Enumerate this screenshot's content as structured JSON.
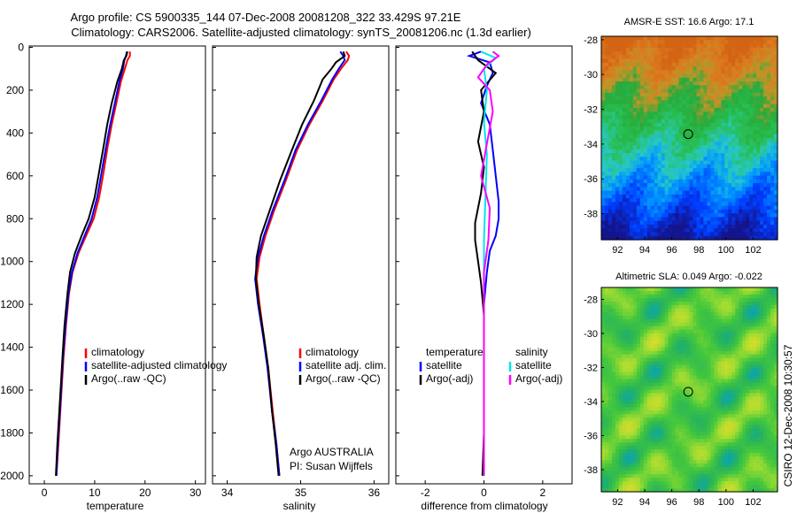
{
  "header": {
    "title_line1": "Argo profile: CS 5900335_144 07-Dec-2008 20081208_322 33.429S 97.21E",
    "title_line2": "Climatology: CARS2006. Satellite-adjusted climatology: synTS_20081206.nc (1.3d earlier)"
  },
  "side_label": "CSIRO 12-Dec-2008 10:30:57",
  "colors": {
    "climatology": "#ff0000",
    "satellite": "#0000ff",
    "argo": "#000000",
    "sal_satellite": "#00e5ee",
    "sal_argo": "#ff00ff"
  },
  "chart_data": [
    {
      "type": "line",
      "id": "temperature",
      "xlabel": "temperature",
      "xlim": [
        -3,
        32
      ],
      "xticks": [
        0,
        10,
        20,
        30
      ],
      "ylim": [
        2050,
        0
      ],
      "yticks": [
        0,
        200,
        400,
        600,
        800,
        1000,
        1200,
        1400,
        1600,
        1800,
        2000
      ],
      "legend": [
        "climatology",
        "satellite-adjusted climatology",
        "Argo(..raw -QC)"
      ],
      "series": [
        {
          "name": "climatology",
          "color": "climatology",
          "points": [
            [
              17.0,
              20
            ],
            [
              17.0,
              40
            ],
            [
              16.5,
              60
            ],
            [
              16.0,
              100
            ],
            [
              15.2,
              160
            ],
            [
              14.3,
              260
            ],
            [
              13.4,
              360
            ],
            [
              12.6,
              460
            ],
            [
              11.8,
              580
            ],
            [
              10.9,
              700
            ],
            [
              9.8,
              800
            ],
            [
              8.3,
              880
            ],
            [
              6.8,
              960
            ],
            [
              5.6,
              1050
            ],
            [
              4.9,
              1150
            ],
            [
              4.3,
              1300
            ],
            [
              3.8,
              1450
            ],
            [
              3.3,
              1650
            ],
            [
              2.8,
              1850
            ],
            [
              2.4,
              2000
            ]
          ]
        },
        {
          "name": "satellite-adjusted climatology",
          "color": "satellite",
          "points": [
            [
              16.4,
              20
            ],
            [
              16.2,
              40
            ],
            [
              15.9,
              60
            ],
            [
              15.6,
              100
            ],
            [
              14.9,
              160
            ],
            [
              14.0,
              260
            ],
            [
              13.1,
              360
            ],
            [
              12.3,
              460
            ],
            [
              11.4,
              580
            ],
            [
              10.5,
              700
            ],
            [
              9.4,
              800
            ],
            [
              8.0,
              880
            ],
            [
              6.6,
              960
            ],
            [
              5.5,
              1050
            ],
            [
              4.8,
              1150
            ],
            [
              4.2,
              1300
            ],
            [
              3.7,
              1450
            ],
            [
              3.2,
              1650
            ],
            [
              2.7,
              1850
            ],
            [
              2.4,
              2000
            ]
          ]
        },
        {
          "name": "Argo(..raw -QC)",
          "color": "argo",
          "points": [
            [
              16.5,
              20
            ],
            [
              16.3,
              40
            ],
            [
              15.8,
              60
            ],
            [
              15.4,
              100
            ],
            [
              14.5,
              160
            ],
            [
              13.4,
              260
            ],
            [
              12.5,
              360
            ],
            [
              11.8,
              460
            ],
            [
              10.9,
              580
            ],
            [
              10.0,
              700
            ],
            [
              8.8,
              800
            ],
            [
              7.4,
              880
            ],
            [
              6.1,
              960
            ],
            [
              5.1,
              1050
            ],
            [
              4.6,
              1150
            ],
            [
              4.0,
              1300
            ],
            [
              3.6,
              1450
            ],
            [
              3.1,
              1650
            ],
            [
              2.6,
              1850
            ],
            [
              2.3,
              2000
            ]
          ]
        }
      ]
    },
    {
      "type": "line",
      "id": "salinity",
      "xlabel": "salinity",
      "xlim": [
        33.8,
        36.2
      ],
      "xticks": [
        34,
        35,
        36
      ],
      "ylim": [
        2050,
        0
      ],
      "annotation_line1": "Argo AUSTRALIA",
      "annotation_line2": "PI: Susan Wijffels",
      "legend": [
        "climatology",
        "satellite adj. clim.",
        "Argo(..raw -QC)"
      ],
      "series": [
        {
          "name": "climatology",
          "color": "climatology",
          "points": [
            [
              35.62,
              20
            ],
            [
              35.66,
              40
            ],
            [
              35.64,
              60
            ],
            [
              35.55,
              100
            ],
            [
              35.45,
              150
            ],
            [
              35.3,
              250
            ],
            [
              35.12,
              360
            ],
            [
              34.95,
              480
            ],
            [
              34.8,
              620
            ],
            [
              34.64,
              760
            ],
            [
              34.52,
              880
            ],
            [
              34.44,
              980
            ],
            [
              34.4,
              1080
            ],
            [
              34.44,
              1200
            ],
            [
              34.5,
              1350
            ],
            [
              34.56,
              1500
            ],
            [
              34.62,
              1700
            ],
            [
              34.67,
              1850
            ],
            [
              34.71,
              2000
            ]
          ]
        },
        {
          "name": "satellite adj. clim.",
          "color": "satellite",
          "points": [
            [
              35.54,
              20
            ],
            [
              35.58,
              40
            ],
            [
              35.6,
              60
            ],
            [
              35.52,
              100
            ],
            [
              35.43,
              150
            ],
            [
              35.28,
              250
            ],
            [
              35.1,
              360
            ],
            [
              34.93,
              480
            ],
            [
              34.78,
              620
            ],
            [
              34.62,
              760
            ],
            [
              34.5,
              880
            ],
            [
              34.42,
              980
            ],
            [
              34.38,
              1080
            ],
            [
              34.42,
              1200
            ],
            [
              34.49,
              1350
            ],
            [
              34.55,
              1500
            ],
            [
              34.61,
              1700
            ],
            [
              34.67,
              1850
            ],
            [
              34.71,
              2000
            ]
          ]
        },
        {
          "name": "Argo(..raw -QC)",
          "color": "argo",
          "points": [
            [
              35.58,
              20
            ],
            [
              35.6,
              40
            ],
            [
              35.48,
              70
            ],
            [
              35.42,
              100
            ],
            [
              35.3,
              150
            ],
            [
              35.18,
              250
            ],
            [
              35.02,
              360
            ],
            [
              34.88,
              480
            ],
            [
              34.72,
              620
            ],
            [
              34.58,
              760
            ],
            [
              34.46,
              880
            ],
            [
              34.4,
              980
            ],
            [
              34.39,
              1080
            ],
            [
              34.43,
              1200
            ],
            [
              34.5,
              1350
            ],
            [
              34.56,
              1500
            ],
            [
              34.61,
              1700
            ],
            [
              34.66,
              1850
            ],
            [
              34.7,
              2000
            ]
          ]
        }
      ]
    },
    {
      "type": "line",
      "id": "difference",
      "xlabel": "difference from climatology",
      "xlim": [
        -3.0,
        3.0
      ],
      "xticks": [
        -2,
        0,
        2
      ],
      "ylim": [
        2050,
        0
      ],
      "legend_header_left": "temperature",
      "legend_header_right": "salinity",
      "legend_left": [
        "satellite",
        "Argo(-adj)"
      ],
      "legend_right": [
        "satellite",
        "Argo(-adj)"
      ],
      "series": [
        {
          "name": "temperature satellite",
          "color": "satellite",
          "points": [
            [
              -0.1,
              20
            ],
            [
              -0.5,
              40
            ],
            [
              0.2,
              70
            ],
            [
              0.3,
              120
            ],
            [
              0.1,
              180
            ],
            [
              -0.1,
              260
            ],
            [
              0.2,
              360
            ],
            [
              0.3,
              480
            ],
            [
              0.4,
              600
            ],
            [
              0.5,
              720
            ],
            [
              0.5,
              800
            ],
            [
              0.4,
              880
            ],
            [
              0.2,
              950
            ],
            [
              0.1,
              1050
            ],
            [
              0.0,
              1200
            ],
            [
              0.0,
              1500
            ],
            [
              0.0,
              1800
            ],
            [
              0.0,
              2000
            ]
          ]
        },
        {
          "name": "temperature Argo(-adj)",
          "color": "argo",
          "points": [
            [
              -0.4,
              20
            ],
            [
              -0.2,
              60
            ],
            [
              0.4,
              120
            ],
            [
              -0.1,
              200
            ],
            [
              0.0,
              300
            ],
            [
              -0.2,
              440
            ],
            [
              0.0,
              560
            ],
            [
              -0.1,
              680
            ],
            [
              -0.3,
              820
            ],
            [
              -0.3,
              900
            ],
            [
              -0.2,
              1000
            ],
            [
              -0.1,
              1100
            ],
            [
              0.0,
              1250
            ],
            [
              0.0,
              1500
            ],
            [
              0.0,
              1800
            ],
            [
              -0.05,
              2000
            ]
          ]
        },
        {
          "name": "salinity satellite",
          "color": "sal_satellite",
          "points": [
            [
              -0.1,
              20
            ],
            [
              0.4,
              50
            ],
            [
              0.0,
              100
            ],
            [
              0.1,
              200
            ],
            [
              0.0,
              350
            ],
            [
              0.1,
              500
            ],
            [
              0.05,
              700
            ],
            [
              0.0,
              900
            ],
            [
              0.0,
              1100
            ],
            [
              0.0,
              1300
            ],
            [
              0.0,
              1500
            ],
            [
              0.0,
              1800
            ],
            [
              0.0,
              2000
            ]
          ]
        },
        {
          "name": "salinity Argo(-adj)",
          "color": "sal_argo",
          "points": [
            [
              0.3,
              20
            ],
            [
              0.5,
              40
            ],
            [
              0.1,
              80
            ],
            [
              -0.2,
              140
            ],
            [
              0.2,
              200
            ],
            [
              0.3,
              300
            ],
            [
              0.1,
              450
            ],
            [
              -0.1,
              600
            ],
            [
              0.2,
              750
            ],
            [
              0.15,
              900
            ],
            [
              0.0,
              1050
            ],
            [
              0.0,
              1200
            ],
            [
              0.0,
              1400
            ],
            [
              0.0,
              1600
            ],
            [
              0.0,
              1800
            ],
            [
              0.0,
              2000
            ]
          ]
        }
      ]
    },
    {
      "type": "heatmap",
      "id": "sst-map",
      "title": "AMSR-E SST: 16.6  Argo: 17.1",
      "xlim": [
        90.8,
        103.8
      ],
      "ylim": [
        -39.5,
        -27.8
      ],
      "xticks": [
        92,
        94,
        96,
        98,
        100,
        102
      ],
      "yticks": [
        -28,
        -30,
        -32,
        -34,
        -36,
        -38
      ],
      "marker": {
        "lon": 97.21,
        "lat": -33.429
      }
    },
    {
      "type": "heatmap",
      "id": "sla-map",
      "title": "Altimetric SLA: 0.049  Argo: -0.022",
      "xlim": [
        90.8,
        103.8
      ],
      "ylim": [
        -39.3,
        -27.3
      ],
      "xticks": [
        92,
        94,
        96,
        98,
        100,
        102
      ],
      "yticks": [
        -28,
        -30,
        -32,
        -34,
        -36,
        -38
      ],
      "marker": {
        "lon": 97.21,
        "lat": -33.429
      }
    }
  ]
}
